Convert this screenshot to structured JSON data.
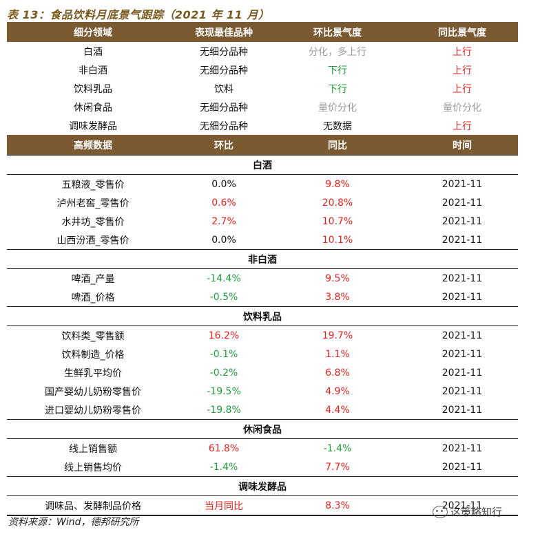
{
  "title": "表 13：食品饮料月底景气跟踪（2021 年 11 月）",
  "summary": {
    "headers": [
      "细分领域",
      "表现最佳品种",
      "环比景气度",
      "同比景气度"
    ],
    "rows": [
      {
        "segment": "白酒",
        "best": "无细分品种",
        "mom": "分化，多上行",
        "mom_tone": "gray",
        "yoy": "上行",
        "yoy_tone": "up"
      },
      {
        "segment": "非白酒",
        "best": "无细分品种",
        "mom": "下行",
        "mom_tone": "down",
        "yoy": "上行",
        "yoy_tone": "up"
      },
      {
        "segment": "饮料乳品",
        "best": "饮料",
        "mom": "下行",
        "mom_tone": "down",
        "yoy": "上行",
        "yoy_tone": "up"
      },
      {
        "segment": "休闲食品",
        "best": "无细分品种",
        "mom": "量价分化",
        "mom_tone": "gray",
        "yoy": "量价分化",
        "yoy_tone": "gray"
      },
      {
        "segment": "调味发酵品",
        "best": "无细分品种",
        "mom": "无数据",
        "mom_tone": "",
        "yoy": "上行",
        "yoy_tone": "up"
      }
    ]
  },
  "hf_headers": [
    "高频数据",
    "环比",
    "同比",
    "时间"
  ],
  "sections": [
    {
      "name": "白酒",
      "rows": [
        {
          "item": "五粮液_零售价",
          "mom": "0.0%",
          "mom_tone": "",
          "yoy": "9.8%",
          "yoy_tone": "up",
          "time": "2021-11"
        },
        {
          "item": "泸州老窖_零售价",
          "mom": "0.6%",
          "mom_tone": "up",
          "yoy": "20.8%",
          "yoy_tone": "up",
          "time": "2021-11"
        },
        {
          "item": "水井坊_零售价",
          "mom": "2.7%",
          "mom_tone": "up",
          "yoy": "10.7%",
          "yoy_tone": "up",
          "time": "2021-11"
        },
        {
          "item": "山西汾酒_零售价",
          "mom": "0.0%",
          "mom_tone": "",
          "yoy": "10.1%",
          "yoy_tone": "up",
          "time": "2021-11"
        }
      ]
    },
    {
      "name": "非白酒",
      "rows": [
        {
          "item": "啤酒_产量",
          "mom": "-14.4%",
          "mom_tone": "down",
          "yoy": "9.5%",
          "yoy_tone": "up",
          "time": "2021-11"
        },
        {
          "item": "啤酒_价格",
          "mom": "-0.5%",
          "mom_tone": "down",
          "yoy": "3.8%",
          "yoy_tone": "up",
          "time": "2021-11"
        }
      ]
    },
    {
      "name": "饮料乳品",
      "rows": [
        {
          "item": "饮料类_零售额",
          "mom": "16.2%",
          "mom_tone": "up",
          "yoy": "19.7%",
          "yoy_tone": "up",
          "time": "2021-11"
        },
        {
          "item": "饮料制造_价格",
          "mom": "-0.1%",
          "mom_tone": "down",
          "yoy": "1.1%",
          "yoy_tone": "up",
          "time": "2021-11"
        },
        {
          "item": "生鲜乳平均价",
          "mom": "-0.2%",
          "mom_tone": "down",
          "yoy": "6.8%",
          "yoy_tone": "up",
          "time": "2021-11"
        },
        {
          "item": "国产婴幼儿奶粉零售价",
          "mom": "-19.5%",
          "mom_tone": "down",
          "yoy": "4.9%",
          "yoy_tone": "up",
          "time": "2021-11"
        },
        {
          "item": "进口婴幼儿奶粉零售价",
          "mom": "-19.8%",
          "mom_tone": "down",
          "yoy": "4.4%",
          "yoy_tone": "up",
          "time": "2021-11"
        }
      ]
    },
    {
      "name": "休闲食品",
      "rows": [
        {
          "item": "线上销售额",
          "mom": "61.8%",
          "mom_tone": "up",
          "yoy": "-1.4%",
          "yoy_tone": "down",
          "time": "2021-11"
        },
        {
          "item": "线上销售均价",
          "mom": "-1.4%",
          "mom_tone": "down",
          "yoy": "7.7%",
          "yoy_tone": "up",
          "time": "2021-11"
        }
      ]
    },
    {
      "name": "调味发酵品",
      "rows": [
        {
          "item": "调味品、发酵制品价格",
          "mom": "当月同比",
          "mom_tone": "up",
          "yoy": "8.3%",
          "yoy_tone": "up",
          "time": "2021-11"
        }
      ]
    }
  ],
  "source": "资料来源：Wind，德邦研究所",
  "watermark": "这策略知行",
  "colors": {
    "header_bg": "#7b5a31",
    "up": "#e8211c",
    "down": "#1e9e3a",
    "gray": "#9a9a9a",
    "title": "#7a5a1e"
  }
}
